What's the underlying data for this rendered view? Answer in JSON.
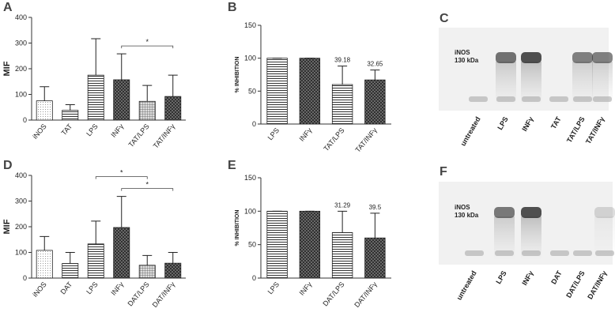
{
  "chart_data": [
    {
      "type": "bar",
      "panel_label": "A",
      "ylabel": "MIF",
      "categories": [
        "iNOS",
        "TAT",
        "LPS",
        "INFγ",
        "TAT/LPS",
        "TAT/INFγ"
      ],
      "values": [
        75,
        38,
        175,
        157,
        73,
        92
      ],
      "errors": [
        55,
        22,
        142,
        101,
        62,
        83
      ],
      "patterns": [
        "dots",
        "hlines",
        "hlines",
        "crosshatch",
        "grid",
        "crosshatch"
      ],
      "ylim": [
        0,
        400
      ],
      "yticks": [
        0,
        100,
        200,
        300,
        400
      ],
      "significance": [
        {
          "from": 3,
          "to": 5,
          "label": "*"
        }
      ]
    },
    {
      "type": "bar",
      "panel_label": "B",
      "ylabel": "% INHIBITION",
      "categories": [
        "LPS",
        "INFγ",
        "TAT/LPS",
        "TAT/INFγ"
      ],
      "values": [
        100,
        100,
        60,
        67
      ],
      "errors": [
        0,
        0,
        28,
        15
      ],
      "annotations": [
        null,
        null,
        "39.18",
        "32.65"
      ],
      "patterns": [
        "hlines",
        "crosshatch",
        "hlines",
        "crosshatch"
      ],
      "ylim": [
        0,
        150
      ],
      "yticks": [
        0,
        50,
        100,
        150
      ]
    },
    {
      "type": "bar",
      "panel_label": "D",
      "ylabel": "MIF",
      "categories": [
        "iNOS",
        "DAT",
        "LPS",
        "INFγ",
        "DAT/LPS",
        "DAT/INFγ"
      ],
      "values": [
        108,
        57,
        133,
        197,
        50,
        58
      ],
      "errors": [
        54,
        43,
        89,
        121,
        38,
        42
      ],
      "patterns": [
        "dots",
        "hlines",
        "hlines",
        "crosshatch",
        "grid",
        "crosshatch"
      ],
      "ylim": [
        0,
        400
      ],
      "yticks": [
        0,
        100,
        200,
        300,
        400
      ],
      "significance": [
        {
          "from": 2,
          "to": 4,
          "label": "*"
        },
        {
          "from": 3,
          "to": 5,
          "label": "*"
        }
      ]
    },
    {
      "type": "bar",
      "panel_label": "E",
      "ylabel": "% INHIBITION",
      "categories": [
        "LPS",
        "INFγ",
        "DAT/LPS",
        "DAT/INFγ"
      ],
      "values": [
        100,
        100,
        68,
        60
      ],
      "errors": [
        0,
        0,
        32,
        37
      ],
      "annotations": [
        null,
        null,
        "31.29",
        "39.5"
      ],
      "patterns": [
        "hlines",
        "crosshatch",
        "hlines",
        "crosshatch"
      ],
      "ylim": [
        0,
        150
      ],
      "yticks": [
        0,
        50,
        100,
        150
      ]
    }
  ],
  "blots": [
    {
      "panel_label": "C",
      "band_label": [
        "iNOS",
        "130 kDa"
      ],
      "lanes": [
        "untreated",
        "LPS",
        "INFγ",
        "TAT",
        "TAT/LPS",
        "TAT/INFγ"
      ]
    },
    {
      "panel_label": "F",
      "band_label": [
        "iNOS",
        "130 kDa"
      ],
      "lanes": [
        "untreated",
        "LPS",
        "INFγ",
        "DAT",
        "DAT/LPS",
        "DAT/INFγ"
      ]
    }
  ]
}
